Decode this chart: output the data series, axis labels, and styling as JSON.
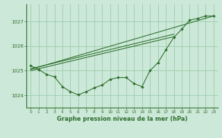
{
  "background_color": "#cce8d8",
  "grid_color": "#99ccaa",
  "line_color": "#2d6e2d",
  "title": "Graphe pression niveau de la mer (hPa)",
  "xlim": [
    -0.5,
    23.5
  ],
  "ylim": [
    1023.5,
    1027.7
  ],
  "yticks": [
    1024,
    1025,
    1026,
    1027
  ],
  "xticks": [
    0,
    1,
    2,
    3,
    4,
    5,
    6,
    7,
    8,
    9,
    10,
    11,
    12,
    13,
    14,
    15,
    16,
    17,
    18,
    19,
    20,
    21,
    22,
    23
  ],
  "series_main": {
    "x": [
      0,
      1,
      2,
      3,
      4,
      5,
      6,
      7,
      8,
      9,
      10,
      11,
      12,
      13,
      14,
      15,
      16,
      17,
      18,
      19,
      20,
      21,
      22,
      23
    ],
    "y": [
      1025.2,
      1025.05,
      1024.85,
      1024.75,
      1024.35,
      1024.15,
      1024.02,
      1024.15,
      1024.3,
      1024.42,
      1024.65,
      1024.72,
      1024.72,
      1024.48,
      1024.35,
      1025.0,
      1025.32,
      1025.85,
      1026.35,
      1026.68,
      1027.05,
      1027.12,
      1027.22,
      1027.22
    ]
  },
  "line_long": {
    "x": [
      0,
      23
    ],
    "y": [
      1025.05,
      1027.22
    ]
  },
  "line_mid1": {
    "x": [
      0,
      18
    ],
    "y": [
      1025.0,
      1026.38
    ]
  },
  "line_mid2": {
    "x": [
      0,
      18
    ],
    "y": [
      1025.08,
      1026.48
    ]
  }
}
